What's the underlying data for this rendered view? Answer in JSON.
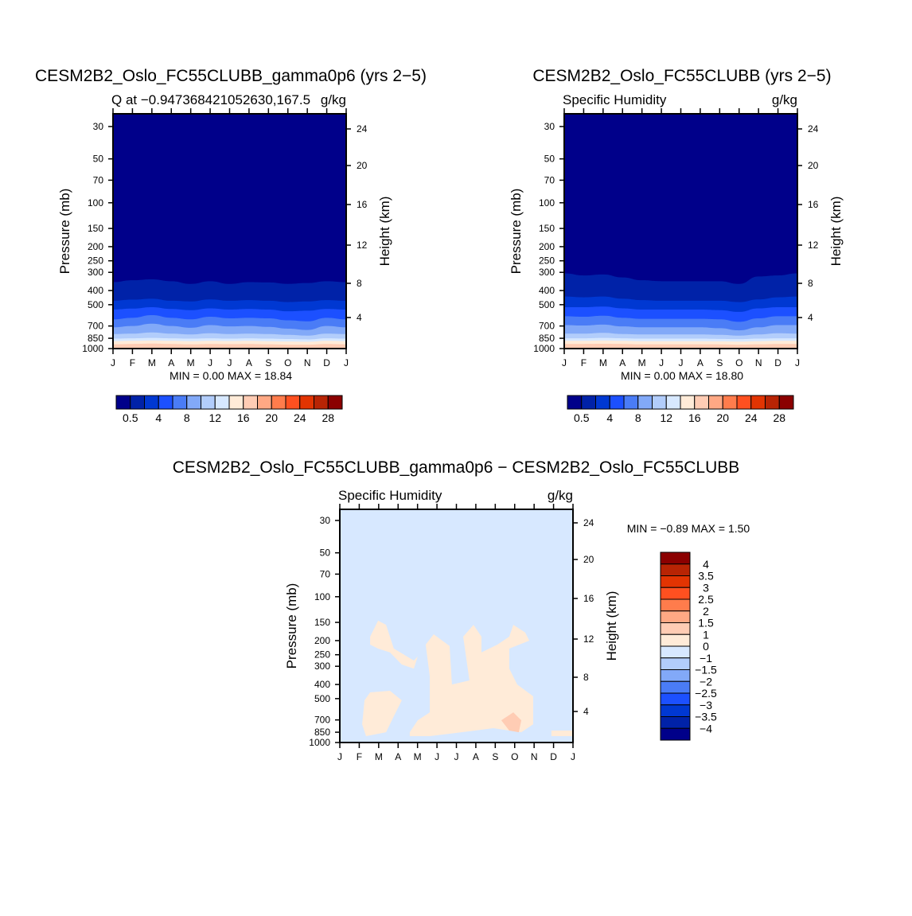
{
  "chart_data": {
    "type": "heatmap",
    "months": [
      "J",
      "F",
      "M",
      "A",
      "M",
      "J",
      "J",
      "A",
      "S",
      "O",
      "N",
      "D",
      "J"
    ],
    "pressure_ticks": [
      30,
      50,
      70,
      100,
      150,
      200,
      250,
      300,
      400,
      500,
      700,
      850,
      1000
    ],
    "height_ticks": [
      4,
      8,
      12,
      16,
      20,
      24
    ],
    "pressure_range_mb": [
      24.5,
      1000
    ],
    "ylabel": "Pressure (mb)",
    "ylabel_right": "Height (km)",
    "panels": [
      {
        "id": "model-a",
        "title": "CESM2B2_Oslo_FC55CLUBB_gamma0p6 (yrs 2−5)",
        "left_subtitle": "Q at −0.947368421052630,167.5",
        "right_subtitle": "g/kg",
        "min_max": "MIN =    0.00  MAX =    18.84",
        "colorbar": {
          "labels": [
            "0.5",
            "4",
            "8",
            "12",
            "16",
            "20",
            "24",
            "28"
          ]
        },
        "band_boundaries_mb": [
          [
            350,
            340,
            335,
            345,
            360,
            345,
            360,
            350,
            352,
            360,
            355,
            345,
            350
          ],
          [
            470,
            462,
            455,
            470,
            475,
            460,
            470,
            465,
            470,
            480,
            475,
            465,
            470
          ],
          [
            540,
            532,
            520,
            535,
            545,
            530,
            540,
            535,
            540,
            555,
            550,
            535,
            540
          ],
          [
            630,
            615,
            590,
            615,
            630,
            605,
            620,
            615,
            620,
            640,
            650,
            615,
            630
          ],
          [
            715,
            700,
            675,
            700,
            720,
            690,
            705,
            700,
            710,
            730,
            745,
            700,
            715
          ],
          [
            795,
            790,
            775,
            790,
            800,
            785,
            795,
            790,
            795,
            805,
            815,
            790,
            795
          ],
          [
            855,
            850,
            845,
            850,
            855,
            850,
            855,
            850,
            855,
            860,
            865,
            850,
            855
          ],
          [
            890,
            885,
            880,
            885,
            890,
            885,
            888,
            885,
            890,
            895,
            898,
            885,
            890
          ],
          [
            935,
            930,
            925,
            930,
            935,
            930,
            932,
            930,
            935,
            940,
            940,
            930,
            935
          ]
        ]
      },
      {
        "id": "model-b",
        "title": "CESM2B2_Oslo_FC55CLUBB (yrs 2−5)",
        "left_subtitle": "Specific Humidity",
        "right_subtitle": "g/kg",
        "min_max": "MIN =    0.00  MAX =    18.80",
        "colorbar": {
          "labels": [
            "0.5",
            "4",
            "8",
            "12",
            "16",
            "20",
            "24",
            "28"
          ]
        },
        "band_boundaries_mb": [
          [
            305,
            315,
            310,
            325,
            340,
            345,
            345,
            345,
            345,
            360,
            320,
            315,
            305
          ],
          [
            440,
            445,
            440,
            455,
            465,
            470,
            470,
            470,
            470,
            480,
            460,
            445,
            440
          ],
          [
            520,
            520,
            515,
            530,
            540,
            540,
            540,
            540,
            545,
            560,
            530,
            520,
            520
          ],
          [
            600,
            605,
            595,
            615,
            625,
            625,
            625,
            625,
            630,
            655,
            620,
            600,
            600
          ],
          [
            690,
            695,
            685,
            705,
            715,
            715,
            715,
            715,
            725,
            750,
            715,
            690,
            690
          ],
          [
            790,
            790,
            780,
            795,
            800,
            800,
            800,
            800,
            805,
            815,
            800,
            785,
            790
          ],
          [
            850,
            850,
            845,
            850,
            855,
            855,
            855,
            855,
            858,
            862,
            855,
            850,
            850
          ],
          [
            885,
            885,
            880,
            885,
            890,
            890,
            890,
            890,
            892,
            896,
            890,
            885,
            885
          ],
          [
            930,
            930,
            928,
            930,
            935,
            935,
            935,
            935,
            936,
            940,
            935,
            930,
            930
          ]
        ]
      },
      {
        "id": "difference",
        "title": "CESM2B2_Oslo_FC55CLUBB_gamma0p6 − CESM2B2_Oslo_FC55CLUBB",
        "left_subtitle": "Specific Humidity",
        "right_subtitle": "g/kg",
        "min_max": "MIN =   −0.89  MAX =     1.50",
        "background_range": "-1 to 0",
        "colorbar": {
          "labels": [
            "4",
            "3.5",
            "3",
            "2.5",
            "2",
            "1.5",
            "1",
            "0",
            "−1",
            "−1.5",
            "−2",
            "−2.5",
            "−3",
            "−3.5",
            "−4"
          ]
        },
        "regions": [
          {
            "range": "0 to 1",
            "points": [
              [
                3.6,
                850
              ],
              [
                4.01,
                704
              ],
              [
                4.63,
                621
              ],
              [
                4.63,
                352
              ],
              [
                4.42,
                213
              ],
              [
                4.83,
                181
              ],
              [
                5.65,
                218
              ],
              [
                5.77,
                400
              ],
              [
                6.67,
                375
              ],
              [
                6.35,
                188
              ],
              [
                6.88,
                156
              ],
              [
                7.29,
                188
              ],
              [
                7.29,
                241
              ],
              [
                8.11,
                213
              ],
              [
                8.72,
                188
              ],
              [
                8.93,
                156
              ],
              [
                9.54,
                176
              ],
              [
                9.75,
                200
              ],
              [
                8.72,
                227
              ],
              [
                8.72,
                311
              ],
              [
                9.13,
                400
              ],
              [
                9.95,
                482
              ],
              [
                9.95,
                750
              ],
              [
                9.34,
                850
              ],
              [
                7.9,
                798
              ],
              [
                6.27,
                850
              ],
              [
                4.63,
                904
              ],
              [
                3.6,
                904
              ]
            ]
          },
          {
            "range": "0 to 1",
            "points": [
              [
                1.56,
                188
              ],
              [
                1.97,
                146
              ],
              [
                2.38,
                156
              ],
              [
                2.78,
                227
              ],
              [
                3.81,
                274
              ],
              [
                4.01,
                257
              ],
              [
                3.81,
                311
              ],
              [
                3.19,
                292
              ],
              [
                2.58,
                241
              ],
              [
                1.97,
                227
              ],
              [
                1.56,
                213
              ]
            ]
          },
          {
            "range": "0 to 1",
            "points": [
              [
                1.27,
                514
              ],
              [
                1.56,
                453
              ],
              [
                2.58,
                442
              ],
              [
                3.19,
                514
              ],
              [
                2.78,
                661
              ],
              [
                2.38,
                850
              ],
              [
                1.35,
                904
              ],
              [
                1.15,
                750
              ]
            ]
          },
          {
            "range": "0 to 1",
            "points": [
              [
                10.89,
                828
              ],
              [
                12,
                828
              ],
              [
                12,
                904
              ],
              [
                10.89,
                904
              ]
            ]
          },
          {
            "range": "1 to 1.5",
            "points": [
              [
                8.31,
                704
              ],
              [
                8.93,
                621
              ],
              [
                9.34,
                704
              ],
              [
                9.21,
                850
              ],
              [
                8.72,
                828
              ]
            ]
          }
        ]
      }
    ],
    "colors": [
      "#00008a",
      "#0022a8",
      "#0038d2",
      "#1c50ff",
      "#4a7cf6",
      "#82a9f8",
      "#b2cdfb",
      "#d7e8ff",
      "#ffebd8",
      "#ffccb4",
      "#ffa884",
      "#ff7c4c",
      "#ff5020",
      "#e23402",
      "#b82404",
      "#8b0000"
    ]
  }
}
